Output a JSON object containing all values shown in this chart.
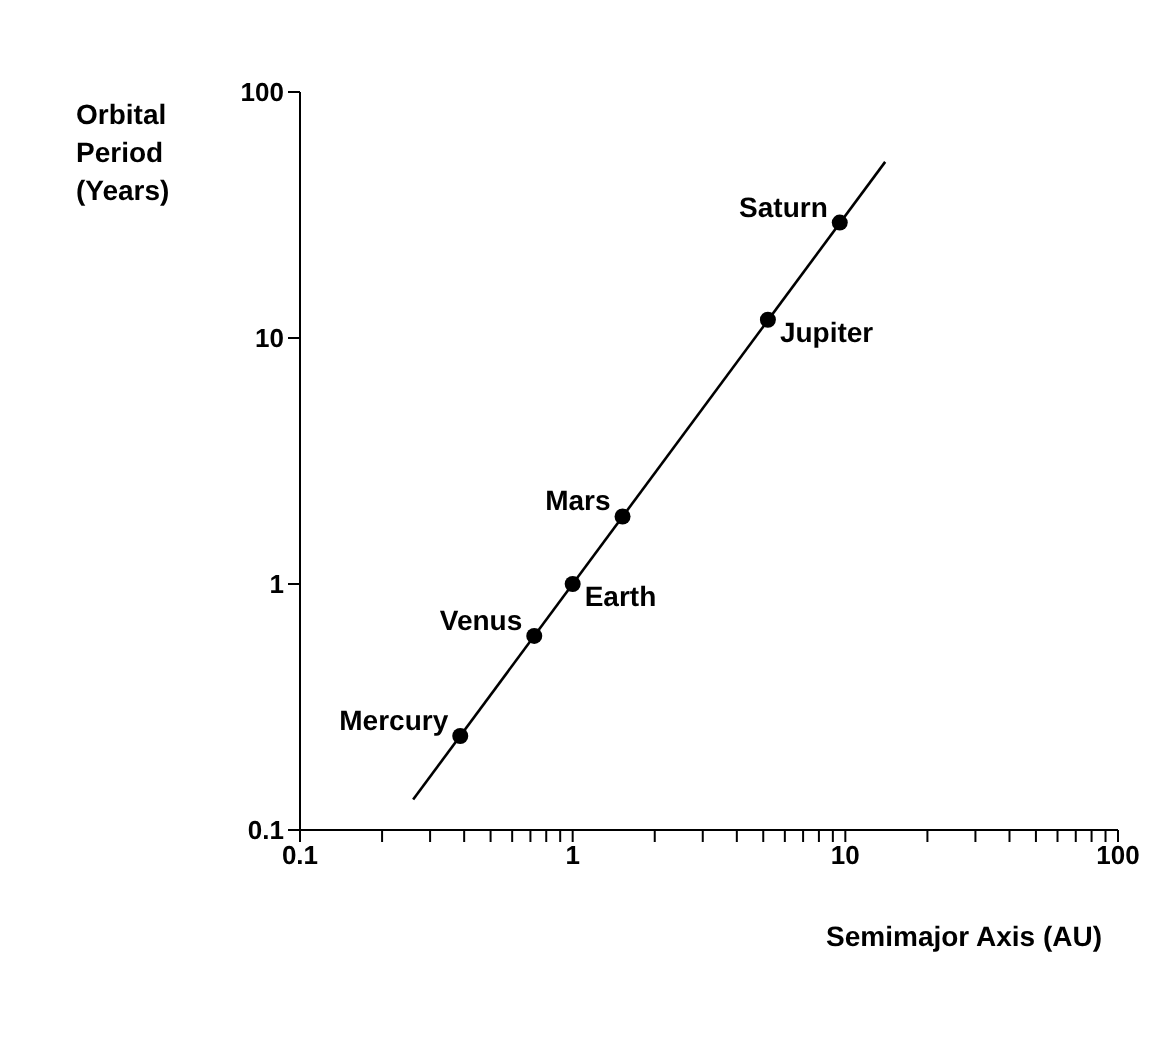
{
  "chart_data": {
    "type": "scatter",
    "xlabel": "Semimajor Axis (AU)",
    "ylabel": "Orbital\nPeriod\n(Years)",
    "log": "xy",
    "marker": "circle",
    "xlim": [
      0.1,
      100
    ],
    "ylim": [
      0.1,
      100
    ],
    "xticks": [
      0.1,
      {
        "value": 0.2,
        "label": null
      },
      {
        "value": 0.3,
        "label": null
      },
      {
        "value": 0.4,
        "label": null
      },
      {
        "value": 0.5,
        "label": null
      },
      {
        "value": 0.6,
        "label": null
      },
      {
        "value": 0.7,
        "label": null
      },
      {
        "value": 0.8,
        "label": null
      },
      {
        "value": 0.9,
        "label": null
      },
      1,
      {
        "value": 2,
        "label": null
      },
      {
        "value": 3,
        "label": null
      },
      {
        "value": 4,
        "label": null
      },
      {
        "value": 5,
        "label": null
      },
      {
        "value": 6,
        "label": null
      },
      {
        "value": 7,
        "label": null
      },
      {
        "value": 8,
        "label": null
      },
      {
        "value": 9,
        "label": null
      },
      10,
      {
        "value": 20,
        "label": null
      },
      {
        "value": 30,
        "label": null
      },
      {
        "value": 40,
        "label": null
      },
      {
        "value": 50,
        "label": null
      },
      {
        "value": 60,
        "label": null
      },
      {
        "value": 70,
        "label": null
      },
      {
        "value": 80,
        "label": null
      },
      {
        "value": 90,
        "label": null
      },
      100
    ],
    "yticks": [
      0.1,
      1,
      10,
      100
    ],
    "series": [
      {
        "color": "#000000",
        "x": [
          0.387,
          0.723,
          1,
          1.524,
          5.2,
          9.54
        ],
        "values": [
          0.241,
          0.615,
          1,
          1.881,
          11.86,
          29.46
        ]
      },
      {
        "type": "line",
        "color": "#000000",
        "marker": "none",
        "line_style": "solid",
        "x": [
          0.26,
          14
        ],
        "values": [
          0.133,
          52
        ]
      }
    ],
    "annotations": [
      {
        "text": "Mercury",
        "x": 0.387,
        "y": 0.241
      },
      {
        "text": "Venus",
        "x": 0.723,
        "y": 0.615
      },
      {
        "text": "Earth",
        "x": 1,
        "y": 1
      },
      {
        "text": "Mars",
        "x": 1.524,
        "y": 1.881
      },
      {
        "text": "Jupiter",
        "x": 5.2,
        "y": 11.86
      },
      {
        "text": "Saturn",
        "x": 9.54,
        "y": 29.46
      }
    ]
  }
}
